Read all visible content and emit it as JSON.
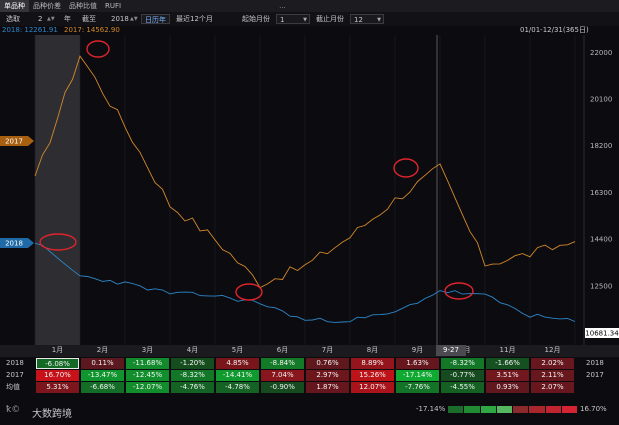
{
  "tabs": [
    "单品种",
    "品种价差",
    "品种比值",
    "RUFI",
    "..."
  ],
  "toolbar": {
    "select_label": "选取",
    "year_count": "2",
    "year_unit": "年",
    "closing_label": "截至",
    "year_value": "2018",
    "calendar_year": "日历年",
    "last12": "最近12个月",
    "start_month_label": "起始月份",
    "start_month": "1",
    "end_month_label": "截止月份",
    "end_month": "12"
  },
  "legend": {
    "s2018": "2018: 12261.91",
    "s2017": "2017: 14562.90",
    "range": "01/01-12/31(365日)"
  },
  "y_axis_labels": [
    "22000",
    "20100",
    "18200",
    "16300",
    "14400",
    "12500"
  ],
  "last_value": "10681.34",
  "cursor_date": "9-27",
  "series_tags": {
    "s2017": "2017",
    "s2018": "2018"
  },
  "colors": {
    "s2017": "#d4892a",
    "s2018": "#2c86c9",
    "annotation": "#e0242c",
    "tag2017": "#a85f10",
    "tag2018": "#1f6aa6"
  },
  "chart_data": {
    "type": "line",
    "x": [
      "01/01",
      "02/01",
      "03/01",
      "04/01",
      "05/01",
      "06/01",
      "07/01",
      "08/01",
      "09/01",
      "10/01",
      "11/01",
      "12/01",
      "12/31"
    ],
    "ylim": [
      10500,
      22500
    ],
    "series": [
      {
        "name": "2017",
        "values": [
          16800,
          21900,
          19000,
          15800,
          14400,
          12600,
          13300,
          14500,
          16000,
          17300,
          13400,
          13800,
          14300
        ]
      },
      {
        "name": "2018",
        "values": [
          14300,
          12900,
          12600,
          12200,
          12100,
          11800,
          11100,
          11100,
          11400,
          12300,
          12100,
          11300,
          11050
        ]
      }
    ]
  },
  "months": [
    "1月",
    "2月",
    "3月",
    "4月",
    "5月",
    "6月",
    "7月",
    "8月",
    "9月",
    "10月",
    "11月",
    "12月"
  ],
  "rows": [
    {
      "label": "2018",
      "values": [
        "-6.08%",
        "0.11%",
        "-11.68%",
        "-1.20%",
        "4.85%",
        "-8.84%",
        "0.76%",
        "8.89%",
        "1.63%",
        "-8.32%",
        "-1.66%",
        "2.02%"
      ]
    },
    {
      "label": "2017",
      "values": [
        "16.70%",
        "-13.47%",
        "-12.45%",
        "-8.32%",
        "-14.41%",
        "7.04%",
        "2.97%",
        "15.26%",
        "-17.14%",
        "-0.77%",
        "3.51%",
        "2.11%"
      ]
    },
    {
      "label": "均值",
      "values": [
        "5.31%",
        "-6.68%",
        "-12.07%",
        "-4.76%",
        "-4.78%",
        "-0.90%",
        "1.87%",
        "12.07%",
        "-7.76%",
        "-4.55%",
        "0.93%",
        "2.07%"
      ]
    }
  ],
  "footer": {
    "brand": "大数跨境",
    "min": "-17.14%",
    "max": "16.70%"
  }
}
